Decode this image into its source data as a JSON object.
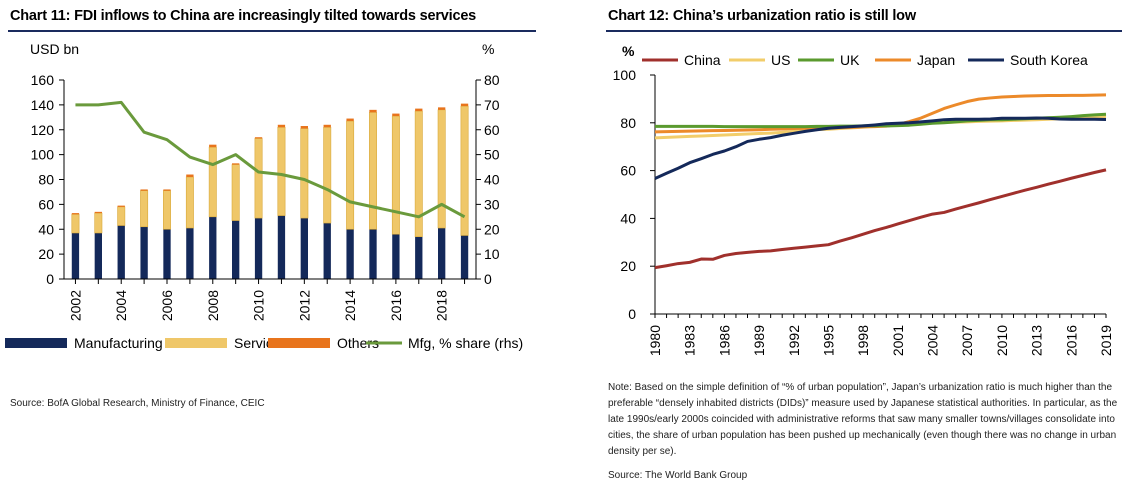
{
  "colors": {
    "manufacturing": "#14295a",
    "services": "#efc769",
    "others": "#e8741c",
    "mfg_share": "#6a9a3c",
    "title_rule": "#1a2b5e",
    "china": "#a0302c",
    "us": "#f2cd6a",
    "uk": "#5a9a2e",
    "japan": "#ec8a2a",
    "south_korea": "#14295a"
  },
  "left": {
    "title": "Chart 11: FDI inflows to China are increasingly tilted towards services",
    "source": "Source:  BofA Global Research, Ministry of Finance, CEIC"
  },
  "right": {
    "title": "Chart 12: China’s urbanization  ratio is still low",
    "note": "Note: Based on the simple definition of “% of urban population”, Japan’s urbanization  ratio is much higher than the preferable “densely inhabited districts (DIDs)” measure used  by Japanese statistical authorities. In particular, as the late 1990s/early 2000s  coincided  with administrative reforms that saw many smaller towns/villages consolidate into cities, the share of urban population  has been pushed  up mechanically (even though there was no change  in urban density per se).",
    "source": "Source:  The World Bank Group"
  },
  "chart_data": [
    {
      "type": "bar",
      "stacked": true,
      "title": "Chart 11: FDI inflows to China are increasingly tilted towards services",
      "ylabel": "USD bn",
      "y2label": "%",
      "ylim": [
        0,
        160
      ],
      "y2lim": [
        0,
        80
      ],
      "yticks": [
        "0",
        "20",
        "40",
        "60",
        "80",
        "100",
        "120",
        "140",
        "160"
      ],
      "y2ticks": [
        "0",
        "10",
        "20",
        "30",
        "40",
        "50",
        "60",
        "70",
        "80"
      ],
      "categories": [
        2002,
        2003,
        2004,
        2005,
        2006,
        2007,
        2008,
        2009,
        2010,
        2011,
        2012,
        2013,
        2014,
        2015,
        2016,
        2017,
        2018,
        2019
      ],
      "xtick_labels": [
        "2002",
        "2004",
        "2006",
        "2008",
        "2010",
        "2012",
        "2014",
        "2016",
        "2018"
      ],
      "series": [
        {
          "name": "Manufacturing",
          "kind": "bar",
          "values": [
            37,
            37,
            43,
            42,
            40,
            41,
            50,
            47,
            49,
            51,
            49,
            45,
            40,
            40,
            36,
            34,
            41,
            35
          ]
        },
        {
          "name": "Services",
          "kind": "bar",
          "values": [
            15,
            16,
            15,
            29,
            31,
            41,
            56,
            45,
            64,
            71,
            72,
            77,
            87,
            94,
            95,
            101,
            95,
            104
          ]
        },
        {
          "name": "Others",
          "kind": "bar",
          "values": [
            1,
            1,
            1,
            1,
            1,
            2,
            2,
            1,
            1,
            2,
            2,
            2,
            2,
            2,
            2,
            2,
            2,
            2
          ]
        },
        {
          "name": "Mfg, % share (rhs)",
          "kind": "line",
          "axis": "right",
          "values": [
            70,
            70,
            71,
            59,
            56,
            49,
            46,
            50,
            43,
            42,
            40,
            36,
            31,
            29,
            27,
            25,
            30,
            25
          ]
        }
      ],
      "legend": [
        "Manufacturing",
        "Services",
        "Others",
        "Mfg, % share (rhs)"
      ],
      "legend_position": "bottom"
    },
    {
      "type": "line",
      "title": "Chart 12: China’s urbanization  ratio is still low",
      "ylabel": "%",
      "ylim": [
        0,
        100
      ],
      "yticks": [
        "0",
        "20",
        "40",
        "60",
        "80",
        "100"
      ],
      "x": [
        1980,
        1981,
        1982,
        1983,
        1984,
        1985,
        1986,
        1987,
        1988,
        1989,
        1990,
        1991,
        1992,
        1993,
        1994,
        1995,
        1996,
        1997,
        1998,
        1999,
        2000,
        2001,
        2002,
        2003,
        2004,
        2005,
        2006,
        2007,
        2008,
        2009,
        2010,
        2011,
        2012,
        2013,
        2014,
        2015,
        2016,
        2017,
        2018,
        2019
      ],
      "xtick_labels": [
        "1980",
        "1983",
        "1986",
        "1989",
        "1992",
        "1995",
        "1998",
        "2001",
        "2004",
        "2007",
        "2010",
        "2013",
        "2016",
        "2019"
      ],
      "series": [
        {
          "name": "China",
          "values": [
            19.4,
            20.2,
            21.1,
            21.6,
            23.0,
            22.9,
            24.5,
            25.3,
            25.8,
            26.2,
            26.4,
            27.0,
            27.5,
            28.0,
            28.5,
            29.0,
            30.5,
            31.9,
            33.4,
            34.9,
            36.2,
            37.7,
            39.1,
            40.5,
            41.8,
            42.5,
            43.9,
            45.2,
            46.5,
            47.9,
            49.2,
            50.5,
            51.8,
            53.0,
            54.3,
            55.5,
            56.8,
            58.0,
            59.2,
            60.3
          ]
        },
        {
          "name": "US",
          "values": [
            73.7,
            73.9,
            74.1,
            74.3,
            74.5,
            74.7,
            74.9,
            75.1,
            75.3,
            75.5,
            75.7,
            76.0,
            76.4,
            76.8,
            77.2,
            77.3,
            77.6,
            77.9,
            78.2,
            78.6,
            79.1,
            79.4,
            79.6,
            79.8,
            80.0,
            80.1,
            80.3,
            80.4,
            80.6,
            80.7,
            80.8,
            81.0,
            81.1,
            81.3,
            81.5,
            81.7,
            81.9,
            82.1,
            82.3,
            82.5
          ]
        },
        {
          "name": "UK",
          "values": [
            78.5,
            78.5,
            78.5,
            78.5,
            78.5,
            78.5,
            78.4,
            78.4,
            78.4,
            78.4,
            78.4,
            78.4,
            78.4,
            78.4,
            78.5,
            78.5,
            78.6,
            78.6,
            78.7,
            78.8,
            78.7,
            78.8,
            79.0,
            79.4,
            79.8,
            80.0,
            80.4,
            80.8,
            81.0,
            81.3,
            81.3,
            81.5,
            81.7,
            81.9,
            82.1,
            82.3,
            82.6,
            83.0,
            83.3,
            83.6
          ]
        },
        {
          "name": "Japan",
          "values": [
            76.2,
            76.3,
            76.4,
            76.5,
            76.6,
            76.7,
            76.8,
            76.9,
            77.0,
            77.1,
            77.3,
            77.4,
            77.6,
            77.7,
            77.8,
            77.9,
            78.0,
            78.1,
            78.3,
            78.4,
            78.6,
            79.3,
            80.5,
            82.0,
            84.0,
            86.0,
            87.5,
            88.9,
            89.9,
            90.4,
            90.8,
            91.0,
            91.2,
            91.3,
            91.4,
            91.4,
            91.5,
            91.5,
            91.6,
            91.7
          ]
        },
        {
          "name": "South Korea",
          "values": [
            56.7,
            58.9,
            61.0,
            63.3,
            65.0,
            66.8,
            68.2,
            70.0,
            72.2,
            73.1,
            73.8,
            74.8,
            75.6,
            76.4,
            77.1,
            77.7,
            78.1,
            78.4,
            78.7,
            79.1,
            79.6,
            79.8,
            80.0,
            80.4,
            80.8,
            81.3,
            81.5,
            81.5,
            81.5,
            81.6,
            81.9,
            81.9,
            81.9,
            82.0,
            81.9,
            81.6,
            81.5,
            81.5,
            81.5,
            81.4
          ]
        }
      ],
      "legend": [
        "China",
        "US",
        "UK",
        "Japan",
        "South Korea"
      ],
      "legend_position": "top"
    }
  ]
}
